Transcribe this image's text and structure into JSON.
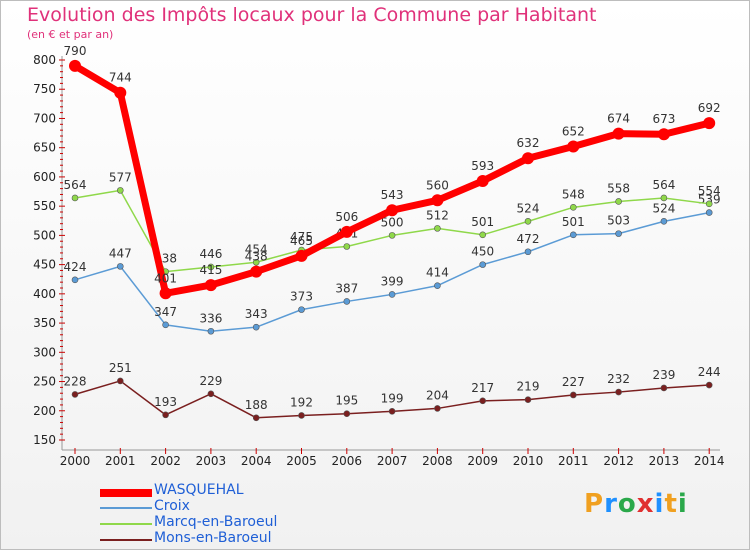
{
  "title": "Evolution des Impôts locaux pour la Commune par Habitant",
  "subtitle": "(en € et par an)",
  "logo_text": "Proxiti",
  "chart_data": {
    "type": "line",
    "title": "Evolution des Impôts locaux pour la Commune par Habitant",
    "ylabel": "(en € et par an)",
    "ylim": [
      150,
      800
    ],
    "yticks": [
      150,
      200,
      250,
      300,
      350,
      400,
      450,
      500,
      550,
      600,
      650,
      700,
      750,
      800
    ],
    "grid": false,
    "legend_position": "bottom-left",
    "x": [
      "2000",
      "2001",
      "2002",
      "2003",
      "2004",
      "2005",
      "2006",
      "2007",
      "2008",
      "2009",
      "2010",
      "2011",
      "2012",
      "2013",
      "2014"
    ],
    "series": [
      {
        "name": "WASQUEHAL",
        "color": "#ff0000",
        "values": [
          790,
          744,
          401,
          415,
          438,
          465,
          506,
          543,
          560,
          593,
          632,
          652,
          674,
          673,
          692
        ]
      },
      {
        "name": "Croix",
        "color": "#5b9bd5",
        "values": [
          424,
          447,
          347,
          336,
          343,
          373,
          387,
          399,
          414,
          450,
          472,
          501,
          503,
          524,
          539
        ]
      },
      {
        "name": "Marcq-en-Baroeul",
        "color": "#8fd84a",
        "values": [
          564,
          577,
          438,
          446,
          454,
          475,
          481,
          500,
          512,
          501,
          524,
          548,
          558,
          564,
          554
        ]
      },
      {
        "name": "Mons-en-Baroeul",
        "color": "#7a1f1f",
        "values": [
          228,
          251,
          193,
          229,
          188,
          192,
          195,
          199,
          204,
          217,
          219,
          227,
          232,
          239,
          244
        ]
      }
    ]
  }
}
